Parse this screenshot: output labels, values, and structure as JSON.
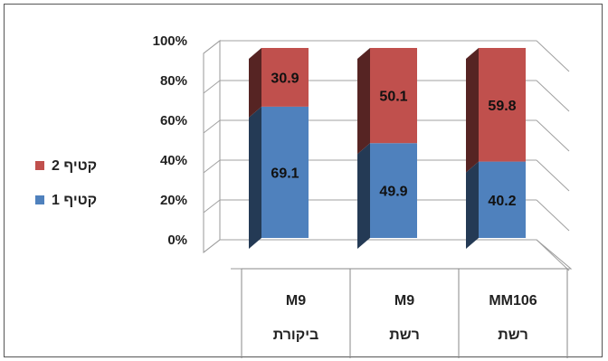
{
  "chart_data": {
    "type": "bar",
    "stacked": true,
    "three_d": true,
    "categories": [
      {
        "line1": "M9",
        "line2": "ביקורת"
      },
      {
        "line1": "M9",
        "line2": "רשת"
      },
      {
        "line1": "MM106",
        "line2": "רשת"
      }
    ],
    "series": [
      {
        "name": "קטיף 1",
        "color": "#4f81bd",
        "values": [
          69.1,
          49.9,
          40.2
        ]
      },
      {
        "name": "קטיף 2",
        "color": "#c0504d",
        "values": [
          30.9,
          50.1,
          59.8
        ]
      }
    ],
    "yticks": [
      "0%",
      "20%",
      "40%",
      "60%",
      "80%",
      "100%"
    ],
    "ylim": [
      0,
      100
    ],
    "grid": true,
    "legend_position": "left"
  }
}
